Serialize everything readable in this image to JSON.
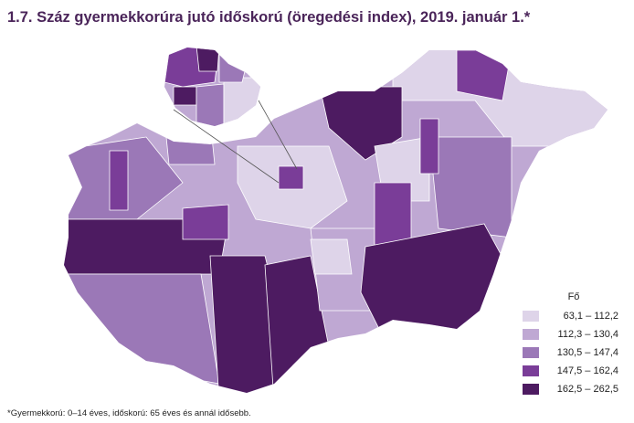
{
  "title": "1.7. Száz gyermekkorúra jutó időskorú (öregedési index), 2019. január 1.*",
  "legend": {
    "title": "Fő",
    "items": [
      {
        "label": "63,1 – 112,2",
        "color": "#ded4e9"
      },
      {
        "label": "112,3 – 130,4",
        "color": "#bfa8d3"
      },
      {
        "label": "130,5 – 147,4",
        "color": "#9b78b7"
      },
      {
        "label": "147,5 – 162,4",
        "color": "#7a3d98"
      },
      {
        "label": "162,5 – 262,5",
        "color": "#4d1b61"
      }
    ]
  },
  "footnote": "*Gyermekkorú: 0–14 éves, időskorú: 65 éves és annál idősebb."
}
